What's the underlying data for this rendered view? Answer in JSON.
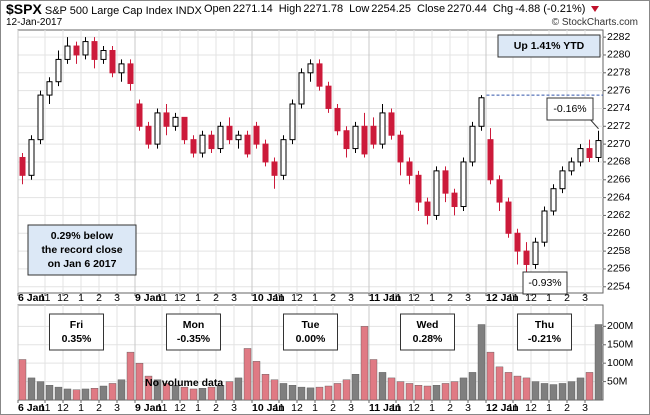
{
  "header": {
    "symbol": "$SPX",
    "name": "S&P 500 Large Cap Index",
    "exchange": "INDX",
    "date": "12-Jan-2017",
    "quote": [
      {
        "label": "Open",
        "value": "2271.14"
      },
      {
        "label": "High",
        "value": "2271.78"
      },
      {
        "label": "Low",
        "value": "2254.25"
      },
      {
        "label": "Close",
        "value": "2270.44"
      },
      {
        "label": "Chg",
        "value": "-4.88 (-0.21%)"
      }
    ],
    "source": "© StockCharts.com"
  },
  "chart_data": [
    {
      "type": "candlestick",
      "up_color": "#ffffff",
      "down_color": "#cc1a3a",
      "grid": true,
      "candles": [
        [
          2268.5,
          2269,
          2265.5,
          2266.5
        ],
        [
          2266.5,
          2271,
          2266,
          2270.5
        ],
        [
          2270.5,
          2276,
          2270,
          2275.5
        ],
        [
          2275.5,
          2277.5,
          2274.5,
          2277
        ],
        [
          2277,
          2280.5,
          2276.5,
          2279.5
        ],
        [
          2279.5,
          2282,
          2279,
          2281
        ],
        [
          2281,
          2281.5,
          2279,
          2280
        ],
        [
          2280,
          2282,
          2279.5,
          2281.5
        ],
        [
          2281.5,
          2282,
          2278.5,
          2279.5
        ],
        [
          2279.5,
          2281,
          2279,
          2280.5
        ],
        [
          2280.5,
          2281,
          2277.5,
          2278
        ],
        [
          2278,
          2279.5,
          2277,
          2279
        ],
        [
          2279,
          2279.5,
          2276,
          2276.8
        ],
        [
          2274.5,
          2275,
          2271.5,
          2272
        ],
        [
          2272,
          2272.5,
          2269.5,
          2270
        ],
        [
          2270,
          2274,
          2269.5,
          2273.5
        ],
        [
          2273.5,
          2274.5,
          2271,
          2272
        ],
        [
          2272,
          2273.5,
          2271.5,
          2273
        ],
        [
          2273,
          2273,
          2270,
          2270.5
        ],
        [
          2270.5,
          2271,
          2268.5,
          2269
        ],
        [
          2269,
          2271.5,
          2268.5,
          2271
        ],
        [
          2271,
          2271.5,
          2269,
          2269.5
        ],
        [
          2269.5,
          2272.5,
          2269,
          2272
        ],
        [
          2272,
          2273,
          2270,
          2270.5
        ],
        [
          2270.5,
          2271.5,
          2269.5,
          2271
        ],
        [
          2271,
          2271.5,
          2268.5,
          2268.9
        ],
        [
          2272,
          2272.5,
          2269.5,
          2270
        ],
        [
          2270,
          2270.5,
          2267.5,
          2268
        ],
        [
          2268,
          2268.5,
          2265,
          2266.5
        ],
        [
          2266.5,
          2271,
          2266,
          2270.5
        ],
        [
          2270.5,
          2275,
          2270,
          2274.5
        ],
        [
          2274.5,
          2278.5,
          2274,
          2278
        ],
        [
          2278,
          2279.5,
          2277,
          2279
        ],
        [
          2279,
          2279.5,
          2276,
          2276.5
        ],
        [
          2276.5,
          2277,
          2273.5,
          2274
        ],
        [
          2274,
          2274.5,
          2271,
          2271.5
        ],
        [
          2271.5,
          2272,
          2268.5,
          2269.5
        ],
        [
          2269.5,
          2272.5,
          2269,
          2272
        ],
        [
          2272,
          2273.5,
          2268.5,
          2268.9
        ],
        [
          2272,
          2273,
          2269.5,
          2270
        ],
        [
          2270,
          2274.5,
          2269.5,
          2273.5
        ],
        [
          2273.5,
          2274,
          2270.5,
          2271
        ],
        [
          2271,
          2271.5,
          2266.5,
          2268
        ],
        [
          2268,
          2268.5,
          2265.5,
          2266.5
        ],
        [
          2266.5,
          2267,
          2262.5,
          2263.5
        ],
        [
          2263.5,
          2264,
          2261,
          2262
        ],
        [
          2262,
          2267.5,
          2261.5,
          2267
        ],
        [
          2267,
          2267.5,
          2263.5,
          2264.5
        ],
        [
          2264.5,
          2265,
          2262,
          2263
        ],
        [
          2263,
          2268.5,
          2262.5,
          2268
        ],
        [
          2268,
          2272.5,
          2267.5,
          2272
        ],
        [
          2272,
          2275.5,
          2271.5,
          2275.2
        ],
        [
          2270.5,
          2271.8,
          2265.5,
          2266
        ],
        [
          2266,
          2266.5,
          2262.5,
          2263.5
        ],
        [
          2263.5,
          2264,
          2259.5,
          2260
        ],
        [
          2260,
          2260.5,
          2256.5,
          2258
        ],
        [
          2258,
          2259,
          2254.3,
          2256.5
        ],
        [
          2256.5,
          2259.5,
          2256,
          2259
        ],
        [
          2259,
          2263,
          2258.5,
          2262.5
        ],
        [
          2262.5,
          2265.5,
          2262,
          2265
        ],
        [
          2265,
          2267.5,
          2264.5,
          2267
        ],
        [
          2267,
          2268.5,
          2266.5,
          2268
        ],
        [
          2268,
          2270,
          2267.5,
          2269.5
        ],
        [
          2269.5,
          2270.5,
          2268,
          2268.5
        ],
        [
          2268.5,
          2271.5,
          2268,
          2270.4
        ]
      ],
      "reference_line": 2275.5,
      "xlim": [
        -0.5,
        64.5
      ],
      "xticks": [
        {
          "value": -0.5,
          "label": "6 Jan"
        },
        {
          "value": 2.5,
          "label": "11"
        },
        {
          "value": 4.5,
          "label": "12"
        },
        {
          "value": 6.5,
          "label": "1"
        },
        {
          "value": 8.5,
          "label": "2"
        },
        {
          "value": 10.5,
          "label": "3"
        },
        {
          "value": 12.5,
          "label": "9 Jan"
        },
        {
          "value": 15.5,
          "label": "11"
        },
        {
          "value": 17.5,
          "label": "12"
        },
        {
          "value": 19.5,
          "label": "1"
        },
        {
          "value": 21.5,
          "label": "2"
        },
        {
          "value": 23.5,
          "label": "3"
        },
        {
          "value": 25.5,
          "label": "10 Jan"
        },
        {
          "value": 28.5,
          "label": "11"
        },
        {
          "value": 30.5,
          "label": "12"
        },
        {
          "value": 32.5,
          "label": "1"
        },
        {
          "value": 34.5,
          "label": "2"
        },
        {
          "value": 36.5,
          "label": "3"
        },
        {
          "value": 38.5,
          "label": "11 Jan"
        },
        {
          "value": 41.5,
          "label": "11"
        },
        {
          "value": 43.5,
          "label": "12"
        },
        {
          "value": 45.5,
          "label": "1"
        },
        {
          "value": 47.5,
          "label": "2"
        },
        {
          "value": 49.5,
          "label": "3"
        },
        {
          "value": 51.5,
          "label": "12 Jan"
        },
        {
          "value": 54.5,
          "label": "11"
        },
        {
          "value": 56.5,
          "label": "12"
        },
        {
          "value": 58.5,
          "label": "1"
        },
        {
          "value": 60.5,
          "label": "2"
        },
        {
          "value": 62.5,
          "label": "3"
        }
      ],
      "ylim": [
        2253.3,
        2282.8
      ],
      "yticks": [
        2254,
        2256,
        2258,
        2260,
        2262,
        2264,
        2266,
        2268,
        2270,
        2272,
        2274,
        2276,
        2278,
        2280,
        2282
      ],
      "annotations": [
        {
          "lines": [
            "Up 1.41% YTD"
          ]
        },
        {
          "lines": [
            "0.29% below",
            "the record close",
            "on Jan 6 2017"
          ]
        },
        {
          "lines": [
            "-0.16%"
          ],
          "color": "#c0102a"
        },
        {
          "lines": [
            "-0.93%"
          ],
          "color": "#c0102a"
        }
      ]
    },
    {
      "type": "bar",
      "up_color": "#7f7f7f",
      "down_color": "#e07a84",
      "grid": true,
      "values": [
        110,
        60,
        50,
        40,
        35,
        30,
        28,
        30,
        32,
        38,
        45,
        55,
        130,
        100,
        65,
        55,
        45,
        40,
        35,
        30,
        32,
        35,
        40,
        50,
        60,
        140,
        105,
        70,
        55,
        45,
        40,
        35,
        33,
        35,
        38,
        45,
        55,
        70,
        200,
        110,
        75,
        60,
        50,
        45,
        40,
        38,
        40,
        45,
        50,
        60,
        75,
        205,
        130,
        90,
        75,
        65,
        60,
        50,
        45,
        42,
        45,
        50,
        60,
        75,
        205
      ],
      "xlim": [
        -0.5,
        64.5
      ],
      "xticks": [
        {
          "value": -0.5,
          "label": "6 Jan"
        },
        {
          "value": 2.5,
          "label": "11"
        },
        {
          "value": 4.5,
          "label": "12"
        },
        {
          "value": 6.5,
          "label": "1"
        },
        {
          "value": 8.5,
          "label": "2"
        },
        {
          "value": 10.5,
          "label": "3"
        },
        {
          "value": 12.5,
          "label": "9 Jan"
        },
        {
          "value": 15.5,
          "label": "11"
        },
        {
          "value": 17.5,
          "label": "12"
        },
        {
          "value": 19.5,
          "label": "1"
        },
        {
          "value": 21.5,
          "label": "2"
        },
        {
          "value": 23.5,
          "label": "3"
        },
        {
          "value": 25.5,
          "label": "10 Jan"
        },
        {
          "value": 28.5,
          "label": "11"
        },
        {
          "value": 30.5,
          "label": "12"
        },
        {
          "value": 32.5,
          "label": "1"
        },
        {
          "value": 34.5,
          "label": "2"
        },
        {
          "value": 36.5,
          "label": "3"
        },
        {
          "value": 38.5,
          "label": "11 Jan"
        },
        {
          "value": 41.5,
          "label": "11"
        },
        {
          "value": 43.5,
          "label": "12"
        },
        {
          "value": 45.5,
          "label": "1"
        },
        {
          "value": 47.5,
          "label": "2"
        },
        {
          "value": 49.5,
          "label": "3"
        },
        {
          "value": 51.5,
          "label": "12 Jan"
        },
        {
          "value": 54.5,
          "label": "11"
        },
        {
          "value": 56.5,
          "label": "12"
        },
        {
          "value": 58.5,
          "label": "1"
        },
        {
          "value": 60.5,
          "label": "2"
        },
        {
          "value": 62.5,
          "label": "3"
        }
      ],
      "ylim": [
        0,
        258
      ],
      "yticks": [
        {
          "value": 50,
          "label": "50M"
        },
        {
          "value": 100,
          "label": "100M"
        },
        {
          "value": 150,
          "label": "150M"
        },
        {
          "value": 200,
          "label": "200M"
        }
      ],
      "annotations": [
        {
          "lines": [
            "Fri",
            "0.35%"
          ],
          "color": "#1a8a2a"
        },
        {
          "lines": [
            "Mon",
            "-0.35%"
          ],
          "color": "#c0102a"
        },
        {
          "lines": [
            "Tue",
            "0.00%"
          ],
          "color": "#000000"
        },
        {
          "lines": [
            "Wed",
            "0.28%"
          ],
          "color": "#1a8a2a"
        },
        {
          "lines": [
            "Thu",
            "-0.21%"
          ],
          "color": "#c0102a"
        }
      ],
      "note": "No volume data"
    }
  ]
}
